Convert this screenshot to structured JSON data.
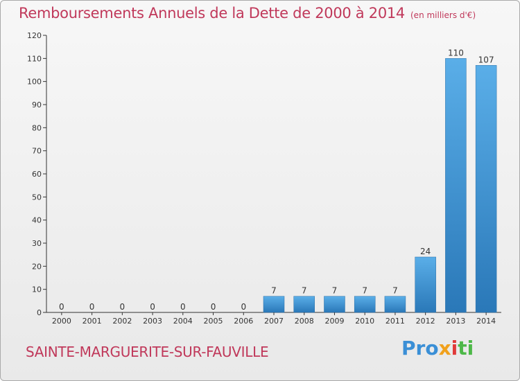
{
  "header": {
    "title": "Remboursements Annuels de la Dette de 2000 à 2014",
    "unit": "(en milliers d'€)"
  },
  "footer": {
    "commune": "SAINTE-MARGUERITE-SUR-FAUVILLE",
    "logo": [
      "Pro",
      "x",
      "i",
      "ti"
    ]
  },
  "colors": {
    "title": "#c0385a",
    "bar_top": "#5aaee8",
    "bar_bottom": "#2a78b8",
    "axis": "#333333",
    "grid": "#bdbdbd"
  },
  "chart_data": {
    "type": "bar",
    "categories": [
      "2000",
      "2001",
      "2002",
      "2003",
      "2004",
      "2005",
      "2006",
      "2007",
      "2008",
      "2009",
      "2010",
      "2011",
      "2012",
      "2013",
      "2014"
    ],
    "values": [
      0,
      0,
      0,
      0,
      0,
      0,
      0,
      7,
      7,
      7,
      7,
      7,
      24,
      110,
      107
    ],
    "value_labels": [
      "0",
      "0",
      "0",
      "0",
      "0",
      "0",
      "0",
      "7",
      "7",
      "7",
      "7",
      "7",
      "24",
      "110",
      "107"
    ],
    "title": "Remboursements Annuels de la Dette de 2000 à 2014",
    "ylim": [
      0,
      120
    ],
    "yticks": [
      0,
      10,
      20,
      30,
      40,
      50,
      60,
      70,
      80,
      90,
      100,
      110,
      120
    ],
    "grid": false,
    "legend": "none"
  }
}
